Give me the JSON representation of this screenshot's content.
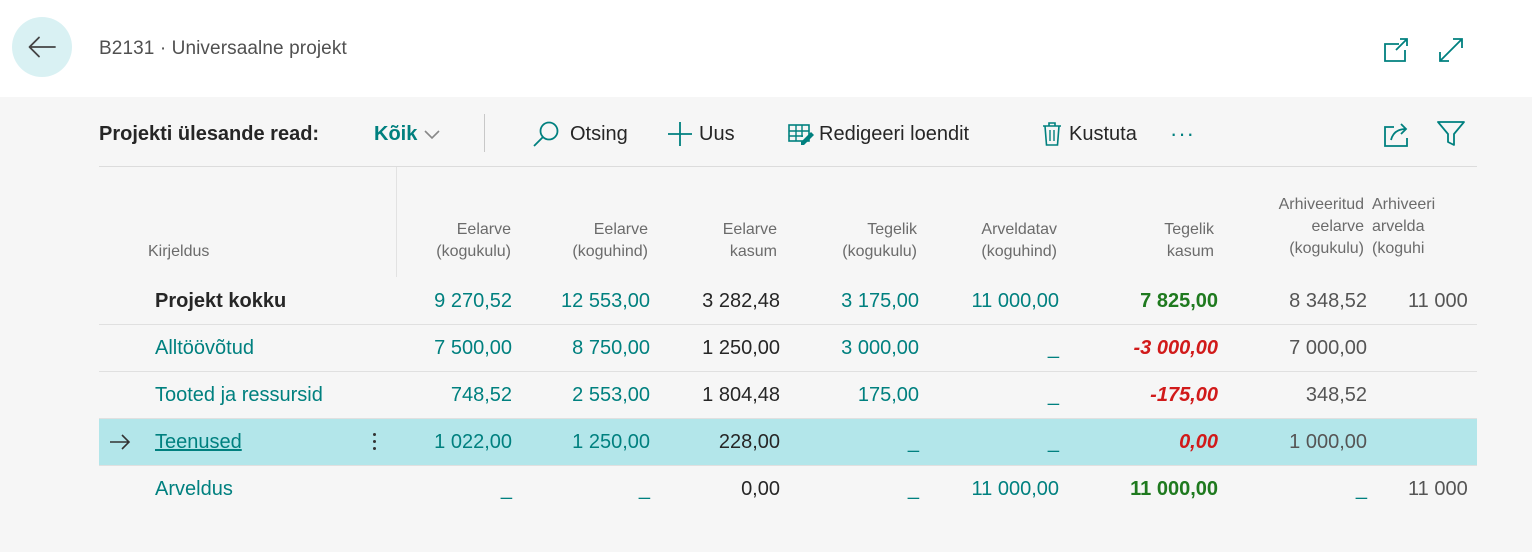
{
  "header": {
    "title": "B2131 · Universaalne projekt"
  },
  "toolbar": {
    "section_label": "Projekti ülesande read:",
    "view_filter": "Kõik",
    "search": "Otsing",
    "new": "Uus",
    "edit_list": "Redigeeri loendit",
    "delete": "Kustuta",
    "more": "···"
  },
  "table": {
    "columns": [
      "Kirjeldus",
      "Eelarve\n(kogukulu)",
      "Eelarve\n(koguhind)",
      "Eelarve\nkasum",
      "Tegelik\n(kogukulu)",
      "Arveldatav\n(koguhind)",
      "Tegelik\nkasum",
      "Arhiveeritud\neelarve\n(kogukulu)",
      "Arhiveeri\narvelda\n(koguhi"
    ],
    "rows": [
      {
        "desc": "Projekt kokku",
        "v1": "9 270,52",
        "v2": "12 553,00",
        "v3": "3 282,48",
        "v4": "3 175,00",
        "v5": "11 000,00",
        "v6": "7 825,00",
        "v7": "8 348,52",
        "v8": "11 000"
      },
      {
        "desc": "Alltöövõtud",
        "v1": "7 500,00",
        "v2": "8 750,00",
        "v3": "1 250,00",
        "v4": "3 000,00",
        "v5": "_",
        "v6": "-3 000,00",
        "v7": "7 000,00",
        "v8": ""
      },
      {
        "desc": "Tooted ja ressursid",
        "v1": "748,52",
        "v2": "2 553,00",
        "v3": "1 804,48",
        "v4": "175,00",
        "v5": "_",
        "v6": "-175,00",
        "v7": "348,52",
        "v8": ""
      },
      {
        "desc": "Teenused",
        "v1": "1 022,00",
        "v2": "1 250,00",
        "v3": "228,00",
        "v4": "_",
        "v5": "_",
        "v6": "0,00",
        "v7": "1 000,00",
        "v8": ""
      },
      {
        "desc": "Arveldus",
        "v1": "_",
        "v2": "_",
        "v3": "0,00",
        "v4": "_",
        "v5": "11 000,00",
        "v6": "11 000,00",
        "v7": "_",
        "v8": "11 000"
      }
    ]
  },
  "colors": {
    "accent": "#00807f",
    "selected_row": "#b3e6ea",
    "positive": "#1f7a1f",
    "negative": "#d11a1a"
  }
}
